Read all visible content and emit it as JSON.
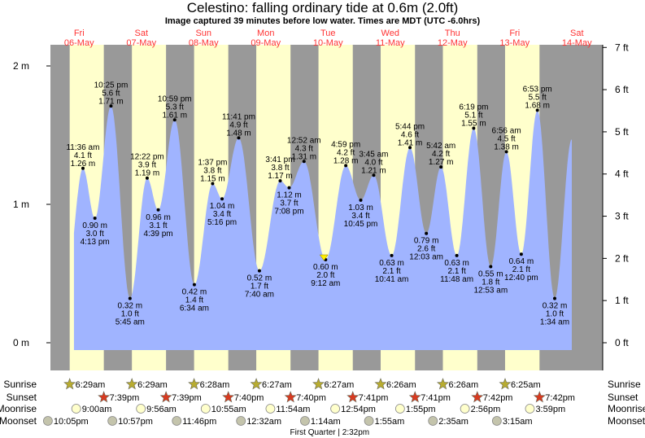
{
  "title": "Celestino: falling  ordinary tide at 0.6m (2.0ft)",
  "subtitle": "Image captured 39 minutes before low water. Times are MDT (UTC -6.0hrs)",
  "colors": {
    "day": "#ffffcc",
    "night": "#999999",
    "water": "#a0b4ff",
    "date_label": "#ff3333",
    "sunrise": "#b8ac30",
    "sunset": "#d83a20",
    "moonrise": "#ffffcc",
    "moonset": "#c4c4ac",
    "marker": "#ffee00"
  },
  "chart_data": {
    "type": "area",
    "title": "Celestino: falling  ordinary tide at 0.6m (2.0ft)",
    "left_axis": {
      "unit": "m",
      "range": [
        0,
        2
      ],
      "ticks": [
        "0 m",
        "1 m",
        "2 m"
      ]
    },
    "right_axis": {
      "unit": "ft",
      "ticks": [
        "0 ft",
        "1 ft",
        "2 ft",
        "3 ft",
        "4 ft",
        "5 ft",
        "6 ft",
        "7 ft"
      ]
    },
    "days": [
      {
        "weekday": "Fri",
        "date": "06-May"
      },
      {
        "weekday": "Sat",
        "date": "07-May"
      },
      {
        "weekday": "Sun",
        "date": "08-May"
      },
      {
        "weekday": "Mon",
        "date": "09-May"
      },
      {
        "weekday": "Tue",
        "date": "10-May"
      },
      {
        "weekday": "Wed",
        "date": "11-May"
      },
      {
        "weekday": "Thu",
        "date": "12-May"
      },
      {
        "weekday": "Fri",
        "date": "13-May"
      },
      {
        "weekday": "Sat",
        "date": "14-May"
      }
    ],
    "extremes": [
      {
        "date": "06-May",
        "time": "11:36 am",
        "m": "1.26 m",
        "ft": "4.1 ft",
        "type": "high"
      },
      {
        "date": "06-May",
        "time": "4:13 pm",
        "m": "0.90 m",
        "ft": "3.0 ft",
        "type": "low"
      },
      {
        "date": "06-May",
        "time": "10:25 pm",
        "m": "1.71 m",
        "ft": "5.6 ft",
        "type": "high"
      },
      {
        "date": "07-May",
        "time": "5:45 am",
        "m": "0.32 m",
        "ft": "1.0 ft",
        "type": "low"
      },
      {
        "date": "07-May",
        "time": "12:22 pm",
        "m": "1.19 m",
        "ft": "3.9 ft",
        "type": "high"
      },
      {
        "date": "07-May",
        "time": "4:39 pm",
        "m": "0.96 m",
        "ft": "3.1 ft",
        "type": "low"
      },
      {
        "date": "07-May",
        "time": "10:59 pm",
        "m": "1.61 m",
        "ft": "5.3 ft",
        "type": "high"
      },
      {
        "date": "08-May",
        "time": "6:34 am",
        "m": "0.42 m",
        "ft": "1.4 ft",
        "type": "low"
      },
      {
        "date": "08-May",
        "time": "1:37 pm",
        "m": "1.15 m",
        "ft": "3.8 ft",
        "type": "high"
      },
      {
        "date": "08-May",
        "time": "5:16 pm",
        "m": "1.04 m",
        "ft": "3.4 ft",
        "type": "low"
      },
      {
        "date": "08-May",
        "time": "11:41 pm",
        "m": "1.48 m",
        "ft": "4.9 ft",
        "type": "high"
      },
      {
        "date": "09-May",
        "time": "7:40 am",
        "m": "0.52 m",
        "ft": "1.7 ft",
        "type": "low"
      },
      {
        "date": "09-May",
        "time": "3:41 pm",
        "m": "1.17 m",
        "ft": "3.8 ft",
        "type": "high"
      },
      {
        "date": "09-May",
        "time": "7:08 pm",
        "m": "1.12 m",
        "ft": "3.7 ft",
        "type": "low"
      },
      {
        "date": "10-May",
        "time": "12:52 am",
        "m": "1.31 m",
        "ft": "4.3 ft",
        "type": "high"
      },
      {
        "date": "10-May",
        "time": "9:12 am",
        "m": "0.60 m",
        "ft": "2.0 ft",
        "type": "low"
      },
      {
        "date": "10-May",
        "time": "4:59 pm",
        "m": "1.28 m",
        "ft": "4.2 ft",
        "type": "high"
      },
      {
        "date": "10-May",
        "time": "10:45 pm",
        "m": "1.03 m",
        "ft": "3.4 ft",
        "type": "low"
      },
      {
        "date": "11-May",
        "time": "3:45 am",
        "m": "1.21 m",
        "ft": "4.0 ft",
        "type": "high"
      },
      {
        "date": "11-May",
        "time": "10:41 am",
        "m": "0.63 m",
        "ft": "2.1 ft",
        "type": "low"
      },
      {
        "date": "11-May",
        "time": "5:44 pm",
        "m": "1.41 m",
        "ft": "4.6 ft",
        "type": "high"
      },
      {
        "date": "12-May",
        "time": "12:03 am",
        "m": "0.79 m",
        "ft": "2.6 ft",
        "type": "low"
      },
      {
        "date": "12-May",
        "time": "5:42 am",
        "m": "1.27 m",
        "ft": "4.2 ft",
        "type": "high"
      },
      {
        "date": "12-May",
        "time": "11:48 am",
        "m": "0.63 m",
        "ft": "2.1 ft",
        "type": "low"
      },
      {
        "date": "12-May",
        "time": "6:19 pm",
        "m": "1.55 m",
        "ft": "5.1 ft",
        "type": "high"
      },
      {
        "date": "13-May",
        "time": "12:53 am",
        "m": "0.55 m",
        "ft": "1.8 ft",
        "type": "low"
      },
      {
        "date": "13-May",
        "time": "6:56 am",
        "m": "1.38 m",
        "ft": "4.5 ft",
        "type": "high"
      },
      {
        "date": "13-May",
        "time": "12:40 pm",
        "m": "0.64 m",
        "ft": "2.1 ft",
        "type": "low"
      },
      {
        "date": "13-May",
        "time": "6:53 pm",
        "m": "1.68 m",
        "ft": "5.5 ft",
        "type": "high"
      },
      {
        "date": "14-May",
        "time": "1:34 am",
        "m": "0.32 m",
        "ft": "1.0 ft",
        "type": "low"
      }
    ],
    "current": {
      "date": "10-May",
      "time": "8:33 am",
      "m": 0.6
    }
  },
  "rows": {
    "sunrise": {
      "label": "Sunrise",
      "events": [
        {
          "date": "06-May",
          "time": "6:29am"
        },
        {
          "date": "07-May",
          "time": "6:29am"
        },
        {
          "date": "08-May",
          "time": "6:28am"
        },
        {
          "date": "09-May",
          "time": "6:27am"
        },
        {
          "date": "10-May",
          "time": "6:27am"
        },
        {
          "date": "11-May",
          "time": "6:26am"
        },
        {
          "date": "12-May",
          "time": "6:26am"
        },
        {
          "date": "13-May",
          "time": "6:25am"
        }
      ]
    },
    "sunset": {
      "label": "Sunset",
      "events": [
        {
          "date": "06-May",
          "time": "7:39pm"
        },
        {
          "date": "07-May",
          "time": "7:39pm"
        },
        {
          "date": "08-May",
          "time": "7:40pm"
        },
        {
          "date": "09-May",
          "time": "7:40pm"
        },
        {
          "date": "10-May",
          "time": "7:41pm"
        },
        {
          "date": "11-May",
          "time": "7:41pm"
        },
        {
          "date": "12-May",
          "time": "7:42pm"
        },
        {
          "date": "13-May",
          "time": "7:42pm"
        }
      ]
    },
    "moonrise": {
      "label": "Moonrise",
      "events": [
        {
          "date": "06-May",
          "time": "9:00am"
        },
        {
          "date": "07-May",
          "time": "9:56am"
        },
        {
          "date": "08-May",
          "time": "10:55am"
        },
        {
          "date": "09-May",
          "time": "11:54am"
        },
        {
          "date": "10-May",
          "time": "12:54pm"
        },
        {
          "date": "11-May",
          "time": "1:55pm"
        },
        {
          "date": "12-May",
          "time": "2:56pm"
        },
        {
          "date": "13-May",
          "time": "3:59pm"
        }
      ]
    },
    "moonset": {
      "label": "Moonset",
      "events": [
        {
          "date": "05-May",
          "time": "10:05pm"
        },
        {
          "date": "06-May",
          "time": "10:57pm"
        },
        {
          "date": "07-May",
          "time": "11:46pm"
        },
        {
          "date": "09-May",
          "time": "12:32am"
        },
        {
          "date": "10-May",
          "time": "1:14am"
        },
        {
          "date": "11-May",
          "time": "1:55am"
        },
        {
          "date": "12-May",
          "time": "2:35am"
        },
        {
          "date": "13-May",
          "time": "3:15am"
        }
      ]
    },
    "moon_phase": {
      "date": "10-May",
      "time": "2:32pm",
      "text": "First Quarter | 2:32pm"
    }
  }
}
